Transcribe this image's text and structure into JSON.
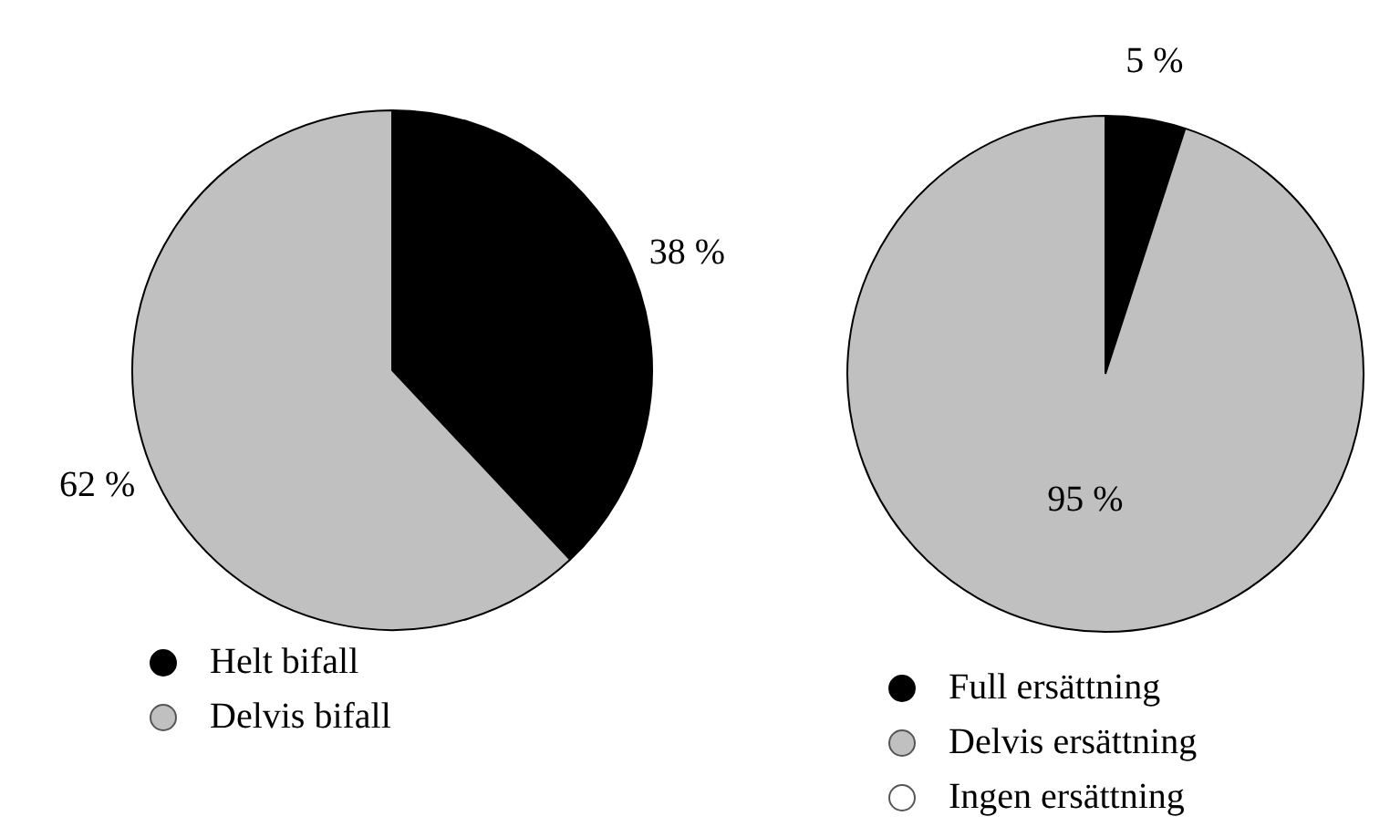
{
  "chart_data": [
    {
      "type": "pie",
      "categories": [
        "Helt bifall",
        "Delvis bifall"
      ],
      "values": [
        38,
        62
      ],
      "colors": [
        "#000000",
        "#c0c0c0"
      ],
      "value_labels": [
        "38 %",
        "62 %"
      ],
      "legend": "bottom"
    },
    {
      "type": "pie",
      "categories": [
        "Full ersättning",
        "Delvis ersättning",
        "Ingen ersättning"
      ],
      "values": [
        5,
        95,
        0
      ],
      "colors": [
        "#000000",
        "#c0c0c0",
        "#ffffff"
      ],
      "value_labels": [
        "5 %",
        "95 %",
        null
      ],
      "legend": "bottom"
    }
  ]
}
